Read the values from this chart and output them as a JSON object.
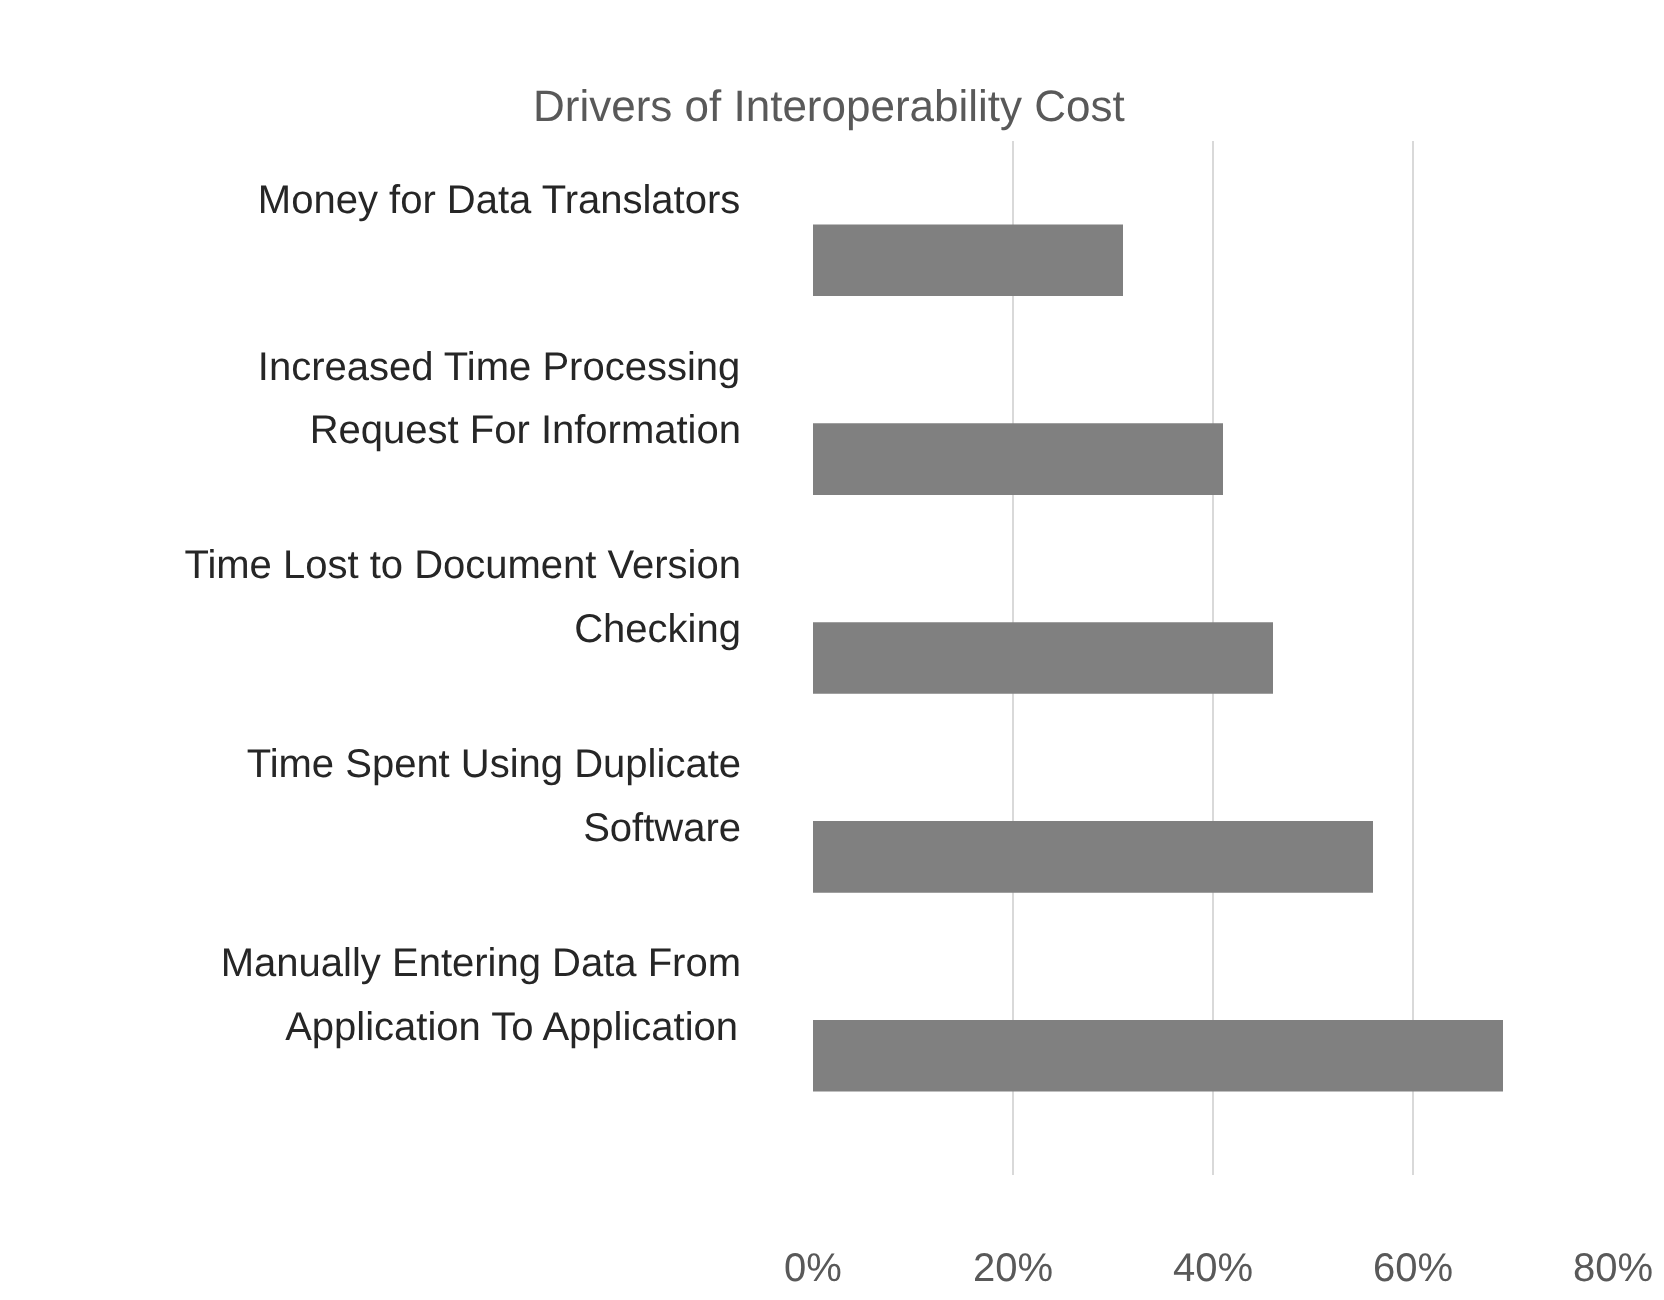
{
  "chart_data": {
    "type": "bar",
    "orientation": "horizontal",
    "title": "Drivers of Interoperability Cost",
    "categories": [
      "Money for Data Translators",
      "Increased Time Processing Request For Information",
      "Time Lost to Document Version Checking",
      "Time Spent Using Duplicate Software",
      "Manually Entering Data From Application To Application"
    ],
    "values": [
      31,
      41,
      46,
      56,
      69
    ],
    "color": "#808080",
    "xlim": [
      0,
      80
    ],
    "xticks": [
      {
        "value": 0,
        "label": "0%"
      },
      {
        "value": 20,
        "label": "20%"
      },
      {
        "value": 40,
        "label": "40%"
      },
      {
        "value": 60,
        "label": "60%"
      },
      {
        "value": 80,
        "label": "80%"
      }
    ],
    "grid": "x"
  }
}
